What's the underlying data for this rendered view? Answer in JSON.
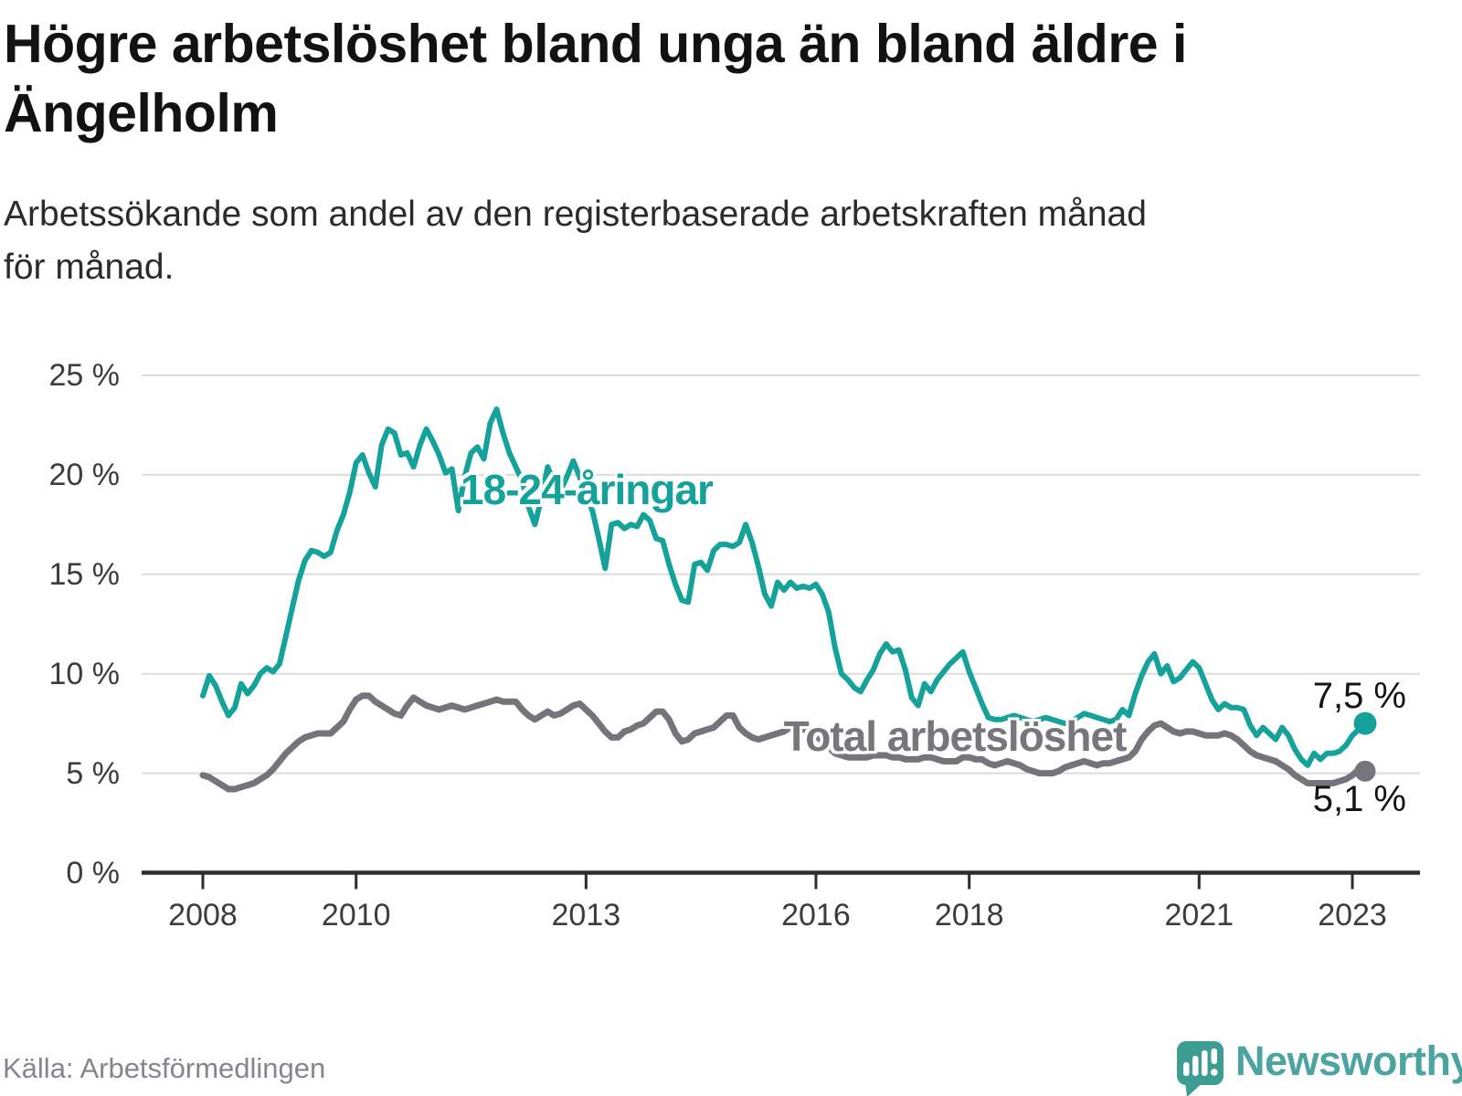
{
  "header": {
    "title_line1": "Högre arbetslöshet bland unga än bland äldre i",
    "title_line2": "Ängelholm",
    "subtitle_line1": "Arbetssökande som andel av den registerbaserade arbetskraften månad",
    "subtitle_line2": "för månad."
  },
  "footer": {
    "source": "Källa: Arbetsförmedlingen",
    "brand_wordmark": "Newsworthy",
    "brand_color": "#3e9d93",
    "wordmark_color": "#4ba49f"
  },
  "chart_data": {
    "type": "line",
    "title": "Högre arbetslöshet bland unga än bland äldre i Ängelholm",
    "subtitle": "Arbetssökande som andel av den registerbaserade arbetskraften månad för månad.",
    "unit": "%",
    "frequency": "monthly",
    "x_start": "2008-01",
    "x_end": "2023-03",
    "xlabel": "",
    "ylabel": "",
    "ylim": [
      0,
      25
    ],
    "grid": true,
    "legend_position": "inline-labels",
    "y_ticks": [
      {
        "label": "0 %",
        "value": 0
      },
      {
        "label": "5 %",
        "value": 5
      },
      {
        "label": "10 %",
        "value": 10
      },
      {
        "label": "15 %",
        "value": 15
      },
      {
        "label": "20 %",
        "value": 20
      },
      {
        "label": "25 %",
        "value": 25
      }
    ],
    "x_ticks": [
      {
        "label": "2008",
        "month_index": 0
      },
      {
        "label": "2010",
        "month_index": 24
      },
      {
        "label": "2013",
        "month_index": 60
      },
      {
        "label": "2016",
        "month_index": 96
      },
      {
        "label": "2018",
        "month_index": 120
      },
      {
        "label": "2021",
        "month_index": 156
      },
      {
        "label": "2023",
        "month_index": 180
      }
    ],
    "series": [
      {
        "name": "18-24-åringar",
        "color": "#15a29a",
        "line_width": 6,
        "end_dot_radius": 12.5,
        "end_label": "7,5 %",
        "last_value": 7.5,
        "values": [
          8.9,
          9.9,
          9.4,
          8.6,
          7.9,
          8.3,
          9.5,
          9.0,
          9.4,
          10.0,
          10.3,
          10.1,
          10.5,
          11.9,
          13.3,
          14.7,
          15.7,
          16.2,
          16.1,
          15.9,
          16.1,
          17.2,
          18.0,
          19.1,
          20.6,
          21.0,
          20.1,
          19.4,
          21.5,
          22.3,
          22.1,
          21.0,
          21.1,
          20.4,
          21.5,
          22.3,
          21.7,
          21.0,
          20.1,
          20.3,
          18.2,
          19.9,
          21.1,
          21.4,
          20.8,
          22.6,
          23.3,
          22.1,
          21.1,
          20.4,
          19.7,
          18.4,
          17.5,
          18.8,
          20.4,
          19.6,
          19.2,
          19.9,
          20.7,
          19.9,
          19.0,
          18.2,
          16.8,
          15.3,
          17.5,
          17.6,
          17.3,
          17.5,
          17.4,
          18.0,
          17.7,
          16.8,
          16.7,
          15.5,
          14.5,
          13.7,
          13.6,
          15.5,
          15.6,
          15.2,
          16.2,
          16.5,
          16.5,
          16.4,
          16.6,
          17.5,
          16.6,
          15.4,
          14.0,
          13.4,
          14.6,
          14.2,
          14.6,
          14.3,
          14.4,
          14.3,
          14.5,
          14.0,
          13.1,
          11.3,
          10.0,
          9.7,
          9.3,
          9.1,
          9.7,
          10.2,
          11.0,
          11.5,
          11.1,
          11.2,
          10.2,
          8.8,
          8.4,
          9.5,
          9.1,
          9.7,
          10.1,
          10.5,
          10.8,
          11.1,
          10.1,
          9.3,
          8.5,
          7.8,
          7.7,
          7.7,
          7.8,
          7.9,
          7.8,
          7.7,
          7.6,
          7.7,
          7.8,
          7.7,
          7.6,
          7.5,
          7.6,
          7.8,
          8.0,
          7.9,
          7.8,
          7.7,
          7.6,
          7.7,
          8.2,
          7.9,
          9.0,
          9.9,
          10.6,
          11.0,
          10.0,
          10.4,
          9.6,
          9.8,
          10.2,
          10.6,
          10.3,
          9.5,
          8.7,
          8.2,
          8.5,
          8.3,
          8.3,
          8.2,
          7.4,
          6.9,
          7.3,
          7.0,
          6.7,
          7.3,
          6.9,
          6.2,
          5.7,
          5.4,
          6.0,
          5.7,
          6.0,
          6.0,
          6.1,
          6.4,
          6.9,
          7.2,
          7.5
        ]
      },
      {
        "name": "Total arbetslöshet",
        "color": "#74747a",
        "line_width": 7,
        "end_dot_radius": 11.5,
        "end_label": "5,1 %",
        "last_value": 5.1,
        "values": [
          4.9,
          4.8,
          4.6,
          4.4,
          4.2,
          4.2,
          4.3,
          4.4,
          4.5,
          4.7,
          4.9,
          5.2,
          5.6,
          6.0,
          6.3,
          6.6,
          6.8,
          6.9,
          7.0,
          7.0,
          7.0,
          7.3,
          7.6,
          8.2,
          8.7,
          8.9,
          8.9,
          8.6,
          8.4,
          8.2,
          8.0,
          7.9,
          8.4,
          8.8,
          8.6,
          8.4,
          8.3,
          8.2,
          8.3,
          8.4,
          8.3,
          8.2,
          8.3,
          8.4,
          8.5,
          8.6,
          8.7,
          8.6,
          8.6,
          8.6,
          8.2,
          7.9,
          7.7,
          7.9,
          8.1,
          7.9,
          8.0,
          8.2,
          8.4,
          8.5,
          8.2,
          7.9,
          7.5,
          7.1,
          6.8,
          6.8,
          7.1,
          7.2,
          7.4,
          7.5,
          7.8,
          8.1,
          8.1,
          7.7,
          7.0,
          6.6,
          6.7,
          7.0,
          7.1,
          7.2,
          7.3,
          7.6,
          7.9,
          7.9,
          7.3,
          7.0,
          6.8,
          6.7,
          6.8,
          6.9,
          7.0,
          7.1,
          7.3,
          7.3,
          7.2,
          7.1,
          6.9,
          6.6,
          6.3,
          6.0,
          5.9,
          5.8,
          5.8,
          5.8,
          5.8,
          5.9,
          5.9,
          5.9,
          5.8,
          5.8,
          5.7,
          5.7,
          5.7,
          5.8,
          5.8,
          5.7,
          5.6,
          5.6,
          5.6,
          5.8,
          5.8,
          5.7,
          5.7,
          5.5,
          5.4,
          5.5,
          5.6,
          5.5,
          5.4,
          5.2,
          5.1,
          5.0,
          5.0,
          5.0,
          5.1,
          5.3,
          5.4,
          5.5,
          5.6,
          5.5,
          5.4,
          5.5,
          5.5,
          5.6,
          5.7,
          5.8,
          6.1,
          6.7,
          7.1,
          7.4,
          7.5,
          7.3,
          7.1,
          7.0,
          7.1,
          7.1,
          7.0,
          6.9,
          6.9,
          6.9,
          7.0,
          6.9,
          6.7,
          6.4,
          6.1,
          5.9,
          5.8,
          5.7,
          5.6,
          5.4,
          5.2,
          4.9,
          4.7,
          4.5,
          4.5,
          4.5,
          4.5,
          4.5,
          4.6,
          4.7,
          4.9,
          5.2,
          5.1
        ]
      }
    ]
  }
}
